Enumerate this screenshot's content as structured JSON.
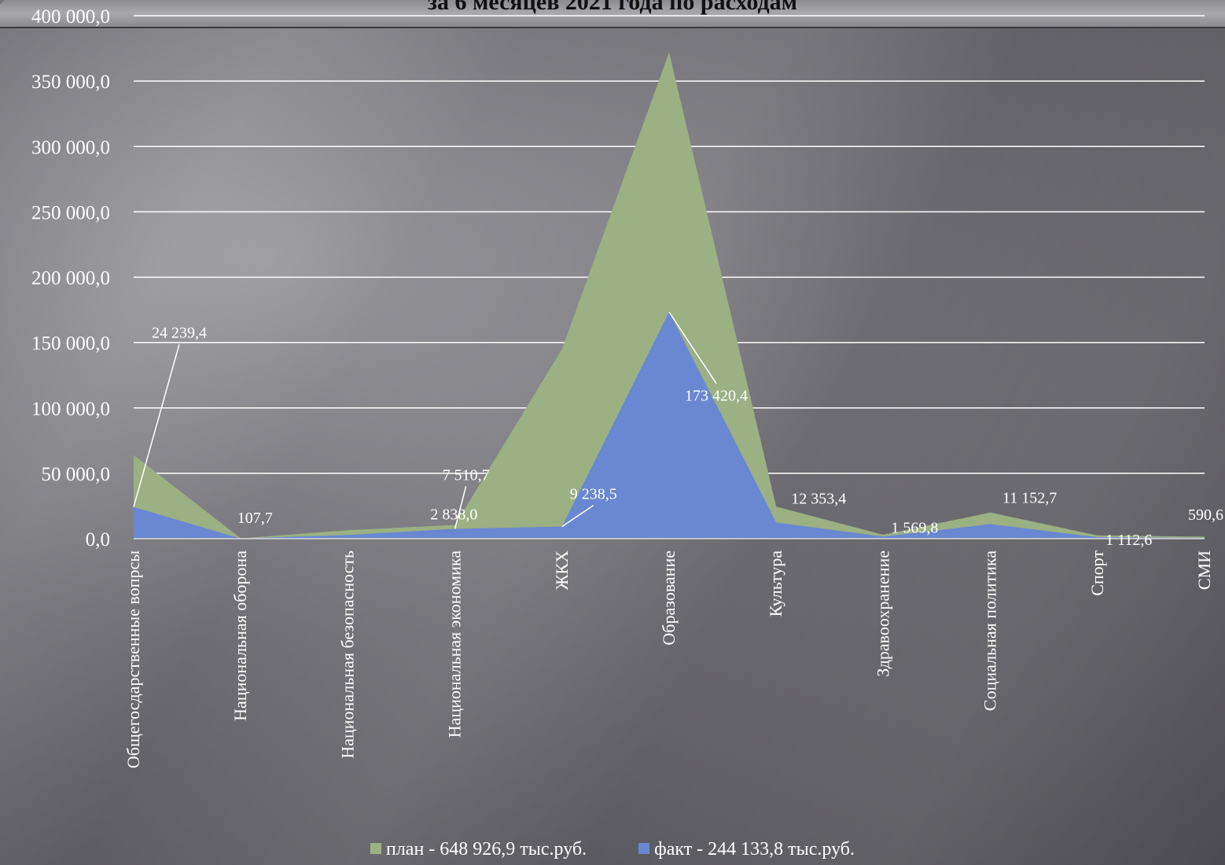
{
  "chart_data": {
    "type": "area",
    "title": "за 6 месяцев  2021 года по расходам",
    "categories": [
      "Общегосдарственные вопрсы",
      "Национальная оборона",
      "Национальная безопасность",
      "Национальная экономика",
      "ЖКХ",
      "Образование",
      "Культура",
      "Здравоохранение",
      "Социальная политика",
      "Спорт",
      "СМИ"
    ],
    "ylim": [
      0,
      400000
    ],
    "yticks": [
      "0,0",
      "50 000,0",
      "100 000,0",
      "150 000,0",
      "200 000,0",
      "250 000,0",
      "300 000,0",
      "350 000,0",
      "400 000,0"
    ],
    "grid": true,
    "legend_position": "bottom",
    "series": [
      {
        "name": "план - 648 926,9 тыс.руб.",
        "color": "#9bb083",
        "values": [
          64000,
          200,
          6500,
          10500,
          145000,
          372000,
          24500,
          3000,
          20000,
          2500,
          1500
        ]
      },
      {
        "name": "факт - 244 133,8 тыс.руб.",
        "color": "#6a87d1",
        "values": [
          24239.4,
          107.7,
          2838.0,
          7510.7,
          9238.5,
          173420.4,
          12353.4,
          1569.8,
          11152.7,
          1112.6,
          590.6
        ],
        "labels": [
          "24 239,4",
          "107,7",
          "2 838,0",
          "7 510,7",
          "9 238,5",
          "173 420,4",
          "12 353,4",
          "1 569,8",
          "11 152,7",
          "1 112,6",
          "590,6"
        ]
      }
    ]
  },
  "colors": {
    "axis_text": "#ffffff",
    "grid": "#ffffff",
    "title": "#111111"
  }
}
